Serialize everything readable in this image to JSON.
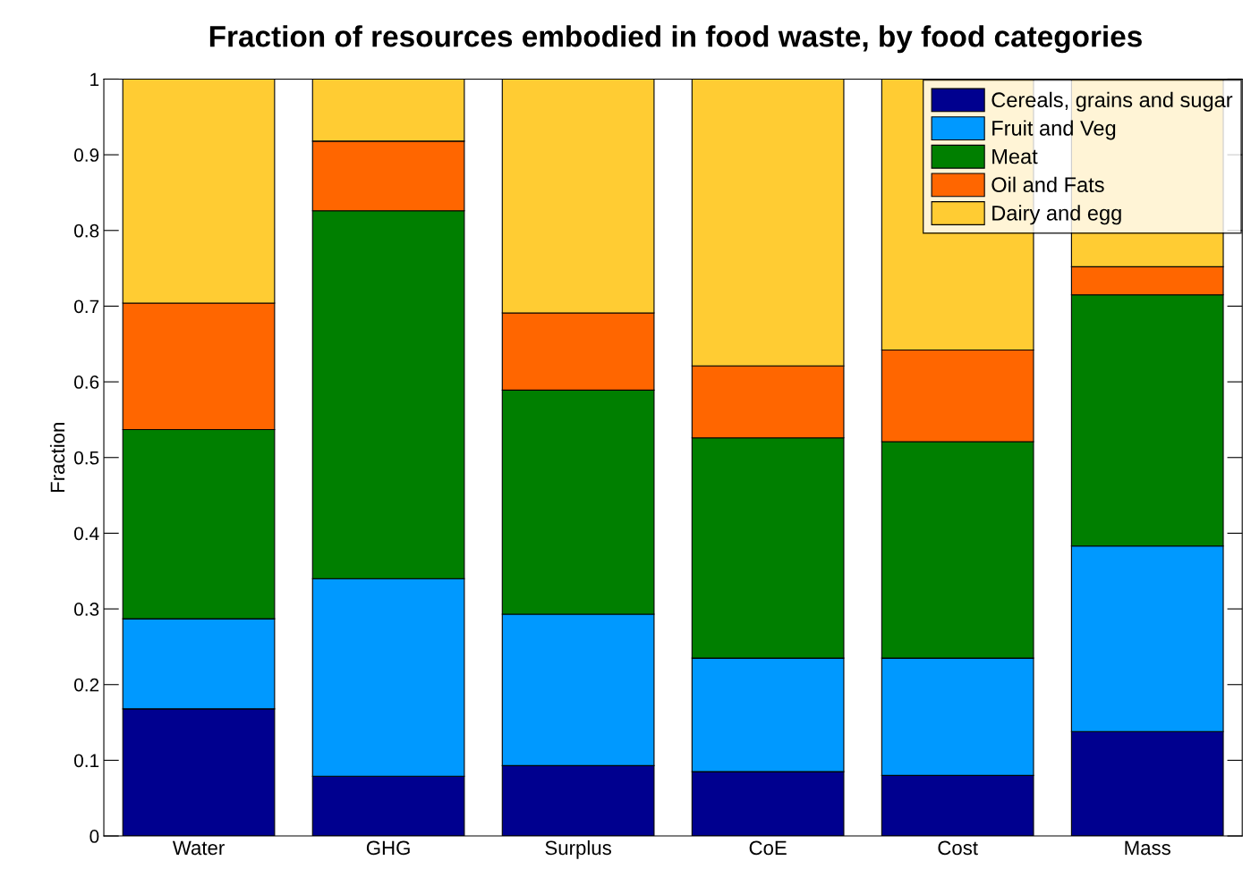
{
  "chart_data": {
    "type": "bar",
    "stacked": true,
    "title": "Fraction of resources embodied in food waste, by food categories",
    "ylabel": "Fraction",
    "categories": [
      "Water",
      "GHG",
      "Surplus",
      "CoE",
      "Cost",
      "Mass"
    ],
    "series": [
      {
        "name": "Cereals, grains and sugar",
        "color": "#00008f",
        "values": [
          0.168,
          0.079,
          0.093,
          0.085,
          0.08,
          0.138
        ]
      },
      {
        "name": "Fruit and Veg",
        "color": "#0099ff",
        "values": [
          0.119,
          0.261,
          0.2,
          0.15,
          0.155,
          0.245
        ]
      },
      {
        "name": "Meat",
        "color": "#007f00",
        "values": [
          0.25,
          0.486,
          0.296,
          0.291,
          0.286,
          0.332
        ]
      },
      {
        "name": "Oil and Fats",
        "color": "#ff6600",
        "values": [
          0.167,
          0.092,
          0.102,
          0.095,
          0.121,
          0.037
        ]
      },
      {
        "name": "Dairy and egg",
        "color": "#ffcc33",
        "values": [
          0.296,
          0.082,
          0.309,
          0.379,
          0.358,
          0.248
        ]
      }
    ],
    "ylim": [
      0,
      1
    ],
    "yticks": [
      0,
      0.1,
      0.2,
      0.3,
      0.4,
      0.5,
      0.6,
      0.7,
      0.8,
      0.9,
      1
    ],
    "grid": false,
    "legend": "top right"
  }
}
